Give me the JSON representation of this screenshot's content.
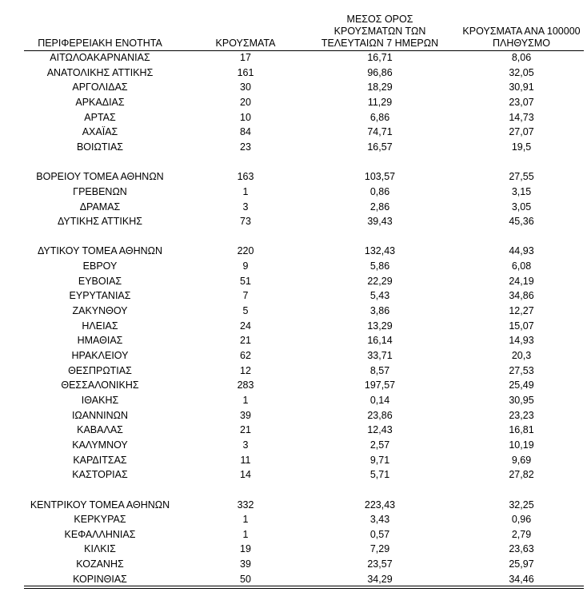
{
  "table": {
    "header": [
      [
        "ΠΕΡΙΦΕΡΕΙΑΚΗ ΕΝΟΤΗΤΑ"
      ],
      [
        "ΚΡΟΥΣΜΑΤΑ"
      ],
      [
        "ΜΕΣΟΣ ΟΡΟΣ",
        "ΚΡΟΥΣΜΑΤΩΝ ΤΩΝ",
        "ΤΕΛΕΥΤΑΙΩΝ 7 ΗΜΕΡΩΝ"
      ],
      [
        "ΚΡΟΥΣΜΑΤΑ ΑΝΑ 100000",
        "ΠΛΗΘΥΣΜΟ"
      ]
    ],
    "groups": [
      [
        [
          "ΑΙΤΩΛΟΑΚΑΡΝΑΝΙΑΣ",
          "17",
          "16,71",
          "8,06"
        ],
        [
          "ΑΝΑΤΟΛΙΚΗΣ ΑΤΤΙΚΗΣ",
          "161",
          "96,86",
          "32,05"
        ],
        [
          "ΑΡΓΟΛΙΔΑΣ",
          "30",
          "18,29",
          "30,91"
        ],
        [
          "ΑΡΚΑΔΙΑΣ",
          "20",
          "11,29",
          "23,07"
        ],
        [
          "ΑΡΤΑΣ",
          "10",
          "6,86",
          "14,73"
        ],
        [
          "ΑΧΑΪΑΣ",
          "84",
          "74,71",
          "27,07"
        ],
        [
          "ΒΟΙΩΤΙΑΣ",
          "23",
          "16,57",
          "19,5"
        ]
      ],
      [
        [
          "ΒΟΡΕΙΟΥ ΤΟΜΕΑ ΑΘΗΝΩΝ",
          "163",
          "103,57",
          "27,55"
        ],
        [
          "ΓΡΕΒΕΝΩΝ",
          "1",
          "0,86",
          "3,15"
        ],
        [
          "ΔΡΑΜΑΣ",
          "3",
          "2,86",
          "3,05"
        ],
        [
          "ΔΥΤΙΚΗΣ ΑΤΤΙΚΗΣ",
          "73",
          "39,43",
          "45,36"
        ]
      ],
      [
        [
          "ΔΥΤΙΚΟΥ ΤΟΜΕΑ ΑΘΗΝΩΝ",
          "220",
          "132,43",
          "44,93"
        ],
        [
          "ΕΒΡΟΥ",
          "9",
          "5,86",
          "6,08"
        ],
        [
          "ΕΥΒΟΙΑΣ",
          "51",
          "22,29",
          "24,19"
        ],
        [
          "ΕΥΡΥΤΑΝΙΑΣ",
          "7",
          "5,43",
          "34,86"
        ],
        [
          "ΖΑΚΥΝΘΟΥ",
          "5",
          "3,86",
          "12,27"
        ],
        [
          "ΗΛΕΙΑΣ",
          "24",
          "13,29",
          "15,07"
        ],
        [
          "ΗΜΑΘΙΑΣ",
          "21",
          "16,14",
          "14,93"
        ],
        [
          "ΗΡΑΚΛΕΙΟΥ",
          "62",
          "33,71",
          "20,3"
        ],
        [
          "ΘΕΣΠΡΩΤΙΑΣ",
          "12",
          "8,57",
          "27,53"
        ],
        [
          "ΘΕΣΣΑΛΟΝΙΚΗΣ",
          "283",
          "197,57",
          "25,49"
        ],
        [
          "ΙΘΑΚΗΣ",
          "1",
          "0,14",
          "30,95"
        ],
        [
          "ΙΩΑΝΝΙΝΩΝ",
          "39",
          "23,86",
          "23,23"
        ],
        [
          "ΚΑΒΑΛΑΣ",
          "21",
          "12,43",
          "16,81"
        ],
        [
          "ΚΑΛΥΜΝΟΥ",
          "3",
          "2,57",
          "10,19"
        ],
        [
          "ΚΑΡΔΙΤΣΑΣ",
          "11",
          "9,71",
          "9,69"
        ],
        [
          "ΚΑΣΤΟΡΙΑΣ",
          "14",
          "5,71",
          "27,82"
        ]
      ],
      [
        [
          "ΚΕΝΤΡΙΚΟΥ ΤΟΜΕΑ ΑΘΗΝΩΝ",
          "332",
          "223,43",
          "32,25"
        ],
        [
          "ΚΕΡΚΥΡΑΣ",
          "1",
          "3,43",
          "0,96"
        ],
        [
          "ΚΕΦΑΛΛΗΝΙΑΣ",
          "1",
          "0,57",
          "2,79"
        ],
        [
          "ΚΙΛΚΙΣ",
          "19",
          "7,29",
          "23,63"
        ],
        [
          "ΚΟΖΑΝΗΣ",
          "39",
          "23,57",
          "25,97"
        ],
        [
          "ΚΟΡΙΝΘΙΑΣ",
          "50",
          "34,29",
          "34,46"
        ]
      ]
    ]
  }
}
